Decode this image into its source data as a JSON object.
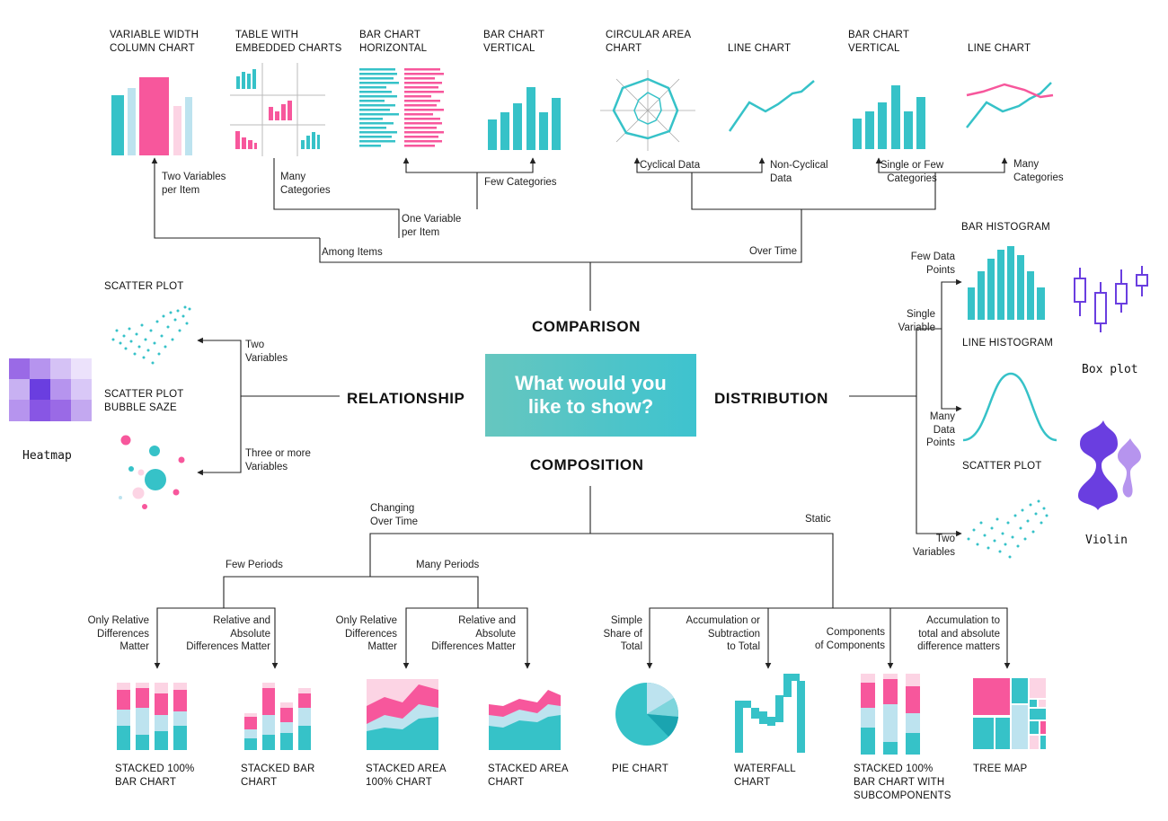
{
  "center": {
    "question": "What would you\nlike to show?"
  },
  "categories": {
    "comparison": "COMPARISON",
    "relationship": "RELATIONSHIP",
    "distribution": "DISTRIBUTION",
    "composition": "COMPOSITION"
  },
  "comparison": {
    "among_items": "Among Items",
    "over_time": "Over Time",
    "two_vars_per_item": "Two Variables\nper Item",
    "one_var_per_item": "One Variable\nper Item",
    "many_categories": "Many\nCategories",
    "few_categories": "Few Categories",
    "cyclical": "Cyclical Data",
    "non_cyclical": "Non-Cyclical\nData",
    "single_few_categories": "Single or Few\nCategories",
    "many_categories_time": "Many\nCategories",
    "charts": {
      "variable_width": "VARIABLE WIDTH\nCOLUMN CHART",
      "table_embedded": "TABLE WITH\nEMBEDDED CHARTS",
      "bar_horizontal": "BAR CHART\nHORIZONTAL",
      "bar_vertical": "BAR CHART\nVERTICAL",
      "circular_area": "CIRCULAR AREA\nCHART",
      "line_chart": "LINE CHART",
      "bar_vertical_time": "BAR CHART\nVERTICAL",
      "line_chart_multi": "LINE CHART"
    }
  },
  "relationship": {
    "two_variables": "Two\nVariables",
    "three_or_more": "Three or more\nVariables",
    "scatter": "SCATTER PLOT",
    "bubble": "SCATTER PLOT\nBUBBLE SAZE",
    "heatmap": "Heatmap"
  },
  "distribution": {
    "single_variable": "Single\nVariable",
    "two_variables": "Two\nVariables",
    "few_points": "Few Data\nPoints",
    "many_points": "Many\nData\nPoints",
    "bar_histogram": "BAR HISTOGRAM",
    "line_histogram": "LINE HISTOGRAM",
    "scatter": "SCATTER PLOT",
    "box_plot": "Box plot",
    "violin": "Violin"
  },
  "composition": {
    "changing_over_time": "Changing\nOver Time",
    "static": "Static",
    "few_periods": "Few Periods",
    "many_periods": "Many Periods",
    "only_relative_1": "Only Relative\nDifferences\nMatter",
    "relative_absolute_1": "Relative and\nAbsolute\nDifferences Matter",
    "only_relative_2": "Only Relative\nDifferences\nMatter",
    "relative_absolute_2": "Relative and\nAbsolute\nDifferences Matter",
    "simple_share": "Simple\nShare of\nTotal",
    "accumulation": "Accumulation or\nSubtraction\nto Total",
    "components": "Components\nof Components",
    "accumulation_abs": "Accumulation to\ntotal and absolute\ndifference matters",
    "charts": {
      "stacked_100_bar": "STACKED 100%\nBAR CHART",
      "stacked_bar": "STACKED BAR\nCHART",
      "stacked_area_100": "STACKED AREA\n100% CHART",
      "stacked_area": "STACKED AREA\nCHART",
      "pie": "PIE CHART",
      "waterfall": "WATERFALL\nCHART",
      "stacked_sub": "STACKED 100%\nBAR CHART WITH\nSUBCOMPONENTS",
      "tree_map": "TREE MAP"
    }
  },
  "colors": {
    "teal": "#36c2c8",
    "light_blue": "#bde3ef",
    "pink": "#f7579c",
    "light_pink": "#fcd4e4",
    "purple": "#6a3ee0",
    "line": "#222222"
  }
}
